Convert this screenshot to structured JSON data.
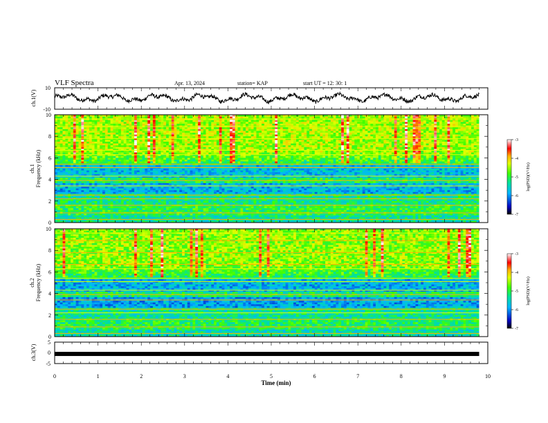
{
  "header": {
    "title": "VLF Spectra",
    "date": "Apr. 13, 2024",
    "station": "station= KAP",
    "start": "start  UT  =   12: 30: 1"
  },
  "chart_data": [
    {
      "type": "line",
      "panel": "ch1-waveform",
      "ylabel": "ch.1(V)",
      "ylim": [
        -10,
        10
      ],
      "ytick_labels": [
        "-10",
        "10"
      ],
      "x_range_min": [
        0,
        9.8
      ],
      "y_approx_range": [
        -4,
        5
      ],
      "line_color": "#000000"
    },
    {
      "type": "heatmap",
      "panel": "ch1-spectrogram",
      "ylabel_channel": "ch.1",
      "ylabel": "Frequency  (kHz)",
      "ylim": [
        0,
        10
      ],
      "yticks": [
        "0",
        "2",
        "4",
        "6",
        "8",
        "10"
      ],
      "x_range_min": [
        0,
        9.8
      ],
      "colorbar": {
        "label": "log(PSD)(V²/Hz)",
        "range": [
          -7,
          -3
        ],
        "ticks": [
          "-3",
          "-4",
          "-5",
          "-6",
          "-7"
        ]
      }
    },
    {
      "type": "heatmap",
      "panel": "ch2-spectrogram",
      "ylabel_channel": "ch.2",
      "ylabel": "Frequency  (kHz)",
      "ylim": [
        0,
        10
      ],
      "yticks": [
        "0",
        "2",
        "4",
        "6",
        "8",
        "10"
      ],
      "x_range_min": [
        0,
        9.8
      ],
      "colorbar": {
        "label": "log(PSD)(V²/Hz)",
        "range": [
          -7,
          -3
        ],
        "ticks": [
          "-3",
          "-4",
          "-5",
          "-6",
          "-7"
        ]
      }
    },
    {
      "type": "line",
      "panel": "ch3-waveform",
      "ylabel": "ch.3(V)",
      "ylim": [
        -5,
        5
      ],
      "ytick_labels": [
        "5",
        "0",
        "-5"
      ],
      "value": -0.5,
      "x_range_min": [
        0,
        9.8
      ],
      "line_color": "#000000"
    }
  ],
  "xaxis": {
    "label": "Time  (min)",
    "range": [
      0,
      10
    ],
    "ticks": [
      "0",
      "1",
      "2",
      "3",
      "4",
      "5",
      "6",
      "7",
      "8",
      "9",
      "10"
    ]
  }
}
